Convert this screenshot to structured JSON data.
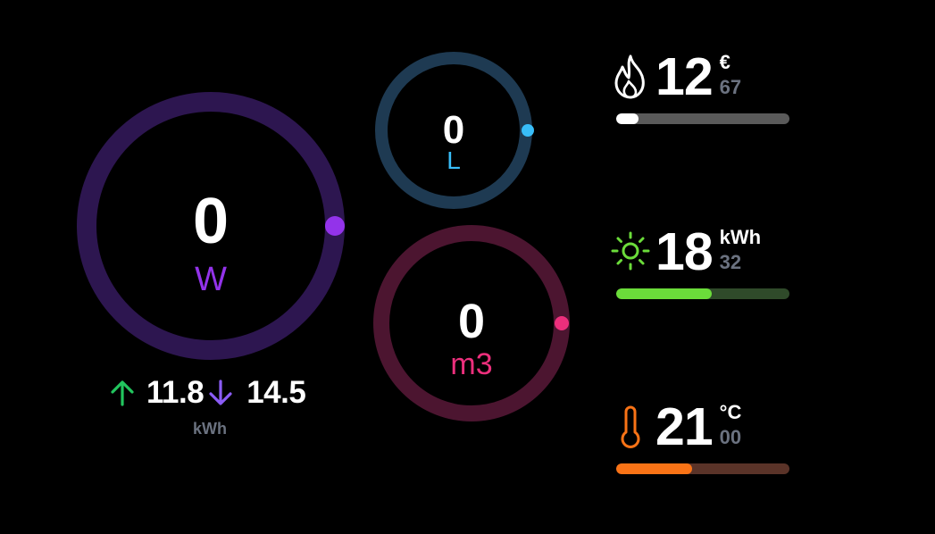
{
  "power": {
    "value": "0",
    "unit": "W",
    "track_color": "#2d1650",
    "dot_color": "#9333ea",
    "unit_color": "#9333ea"
  },
  "water": {
    "value": "0",
    "unit": "L",
    "track_color": "#1e3a52",
    "dot_color": "#38bdf8",
    "unit_color": "#38bdf8"
  },
  "gas": {
    "value": "0",
    "unit": "m3",
    "track_color": "#4c1530",
    "dot_color": "#ec2f7c",
    "unit_color": "#ec2f7c"
  },
  "energy_flow": {
    "import_value": "11.8",
    "export_value": "14.5",
    "unit": "kWh",
    "import_icon": "arrow-up-icon",
    "export_icon": "arrow-down-icon",
    "import_color": "#22c55e",
    "export_color": "#8b5cf6"
  },
  "stats": {
    "cost": {
      "icon": "flame-icon",
      "main": "12",
      "unit": "€",
      "decimal": "67",
      "progress": 0.13,
      "fill_color": "#ffffff",
      "track_color": "#5a5a5a"
    },
    "solar": {
      "icon": "sun-icon",
      "main": "18",
      "unit": "kWh",
      "decimal": "32",
      "progress": 0.55,
      "fill_color": "#6bdc3a",
      "track_color": "#2f4a2a"
    },
    "temperature": {
      "icon": "thermometer-icon",
      "main": "21",
      "unit": "°C",
      "decimal": "00",
      "progress": 0.44,
      "fill_color": "#f97316",
      "track_color": "#5a3328"
    }
  }
}
